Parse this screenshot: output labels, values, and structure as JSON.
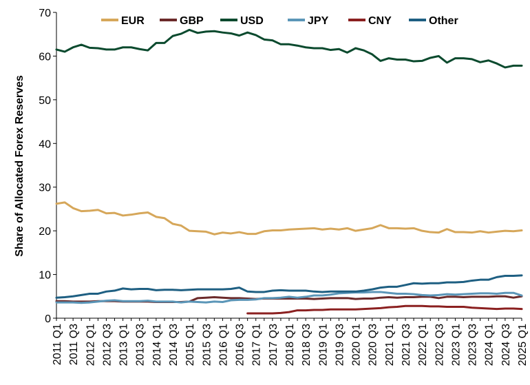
{
  "chart_data": {
    "type": "line",
    "ylabel": "Share of Allocated Forex Reserves",
    "ylim": [
      0,
      70
    ],
    "yticks": [
      0,
      10,
      20,
      30,
      40,
      50,
      60,
      70
    ],
    "x": [
      "2011 Q1",
      "2011 Q2",
      "2011 Q3",
      "2011 Q4",
      "2012 Q1",
      "2012 Q2",
      "2012 Q3",
      "2012 Q4",
      "2013 Q1",
      "2013 Q2",
      "2013 Q3",
      "2013 Q4",
      "2014 Q1",
      "2014 Q2",
      "2014 Q3",
      "2014 Q4",
      "2015 Q1",
      "2015 Q2",
      "2015 Q3",
      "2015 Q4",
      "2016 Q1",
      "2016 Q2",
      "2016 Q3",
      "2016 Q4",
      "2017 Q1",
      "2017 Q2",
      "2017 Q3",
      "2017 Q4",
      "2018 Q1",
      "2018 Q2",
      "2018 Q3",
      "2018 Q4",
      "2019 Q1",
      "2019 Q2",
      "2019 Q3",
      "2019 Q4",
      "2020 Q1",
      "2020 Q2",
      "2020 Q3",
      "2020 Q4",
      "2021 Q1",
      "2021 Q2",
      "2021 Q3",
      "2021 Q4",
      "2022 Q1",
      "2022 Q2",
      "2022 Q3",
      "2022 Q4",
      "2023 Q1",
      "2023 Q2",
      "2023 Q3",
      "2023 Q4",
      "2024 Q1",
      "2024 Q2",
      "2024 Q3",
      "2024 Q4",
      "2025 Q1"
    ],
    "xtick_labels": [
      "2011 Q1",
      "2011 Q3",
      "2012 Q1",
      "2012 Q3",
      "2013 Q1",
      "2013 Q3",
      "2014 Q1",
      "2014 Q3",
      "2015 Q1",
      "2015 Q3",
      "2016 Q1",
      "2016 Q3",
      "2017 Q1",
      "2017 Q3",
      "2018 Q1",
      "2018 Q3",
      "2019 Q1",
      "2019 Q3",
      "2020 Q1",
      "2020 Q3",
      "2021 Q1",
      "2021 Q3",
      "2022 Q1",
      "2022 Q3",
      "2023 Q1",
      "2023 Q3",
      "2024 Q1",
      "2024 Q3",
      "2025 Q1"
    ],
    "legend_position": "top",
    "grid": false,
    "series": [
      {
        "name": "EUR",
        "color": "#d6a75a",
        "values": [
          26.2,
          26.5,
          25.2,
          24.5,
          24.6,
          24.8,
          24.0,
          24.1,
          23.5,
          23.7,
          24.0,
          24.2,
          23.2,
          22.9,
          21.6,
          21.2,
          20.0,
          19.9,
          19.8,
          19.2,
          19.6,
          19.4,
          19.7,
          19.3,
          19.3,
          19.9,
          20.1,
          20.1,
          20.3,
          20.4,
          20.5,
          20.6,
          20.3,
          20.5,
          20.3,
          20.6,
          20.0,
          20.3,
          20.6,
          21.3,
          20.6,
          20.6,
          20.5,
          20.6,
          20.0,
          19.7,
          19.6,
          20.4,
          19.7,
          19.7,
          19.6,
          19.9,
          19.6,
          19.8,
          20.0,
          19.9,
          20.1
        ]
      },
      {
        "name": "GBP",
        "color": "#6b2a2a",
        "values": [
          3.9,
          3.9,
          3.8,
          3.8,
          3.8,
          3.9,
          3.9,
          3.9,
          3.8,
          3.8,
          3.8,
          3.8,
          3.7,
          3.7,
          3.7,
          3.7,
          3.8,
          4.6,
          4.7,
          4.8,
          4.7,
          4.6,
          4.6,
          4.5,
          4.4,
          4.5,
          4.5,
          4.5,
          4.5,
          4.5,
          4.5,
          4.4,
          4.5,
          4.6,
          4.6,
          4.6,
          4.4,
          4.5,
          4.5,
          4.7,
          4.8,
          4.7,
          4.8,
          4.8,
          4.9,
          4.9,
          4.6,
          4.9,
          4.9,
          4.8,
          4.9,
          4.9,
          4.9,
          5.0,
          5.0,
          4.7,
          5.0
        ]
      },
      {
        "name": "USD",
        "color": "#0b4a2e",
        "values": [
          61.5,
          61.0,
          62.0,
          62.6,
          61.9,
          61.8,
          61.5,
          61.5,
          62.0,
          62.0,
          61.6,
          61.3,
          63.0,
          63.0,
          64.6,
          65.1,
          66.0,
          65.3,
          65.6,
          65.7,
          65.4,
          65.2,
          64.7,
          65.4,
          64.8,
          63.8,
          63.6,
          62.7,
          62.7,
          62.4,
          62.0,
          61.8,
          61.8,
          61.4,
          61.6,
          60.8,
          61.8,
          61.3,
          60.4,
          58.9,
          59.5,
          59.2,
          59.2,
          58.8,
          58.9,
          59.6,
          60.0,
          58.5,
          59.5,
          59.5,
          59.3,
          58.6,
          59.0,
          58.3,
          57.4,
          57.8,
          57.8
        ]
      },
      {
        "name": "JPY",
        "color": "#5b96b8",
        "values": [
          3.6,
          3.6,
          3.6,
          3.5,
          3.6,
          3.8,
          4.0,
          4.1,
          3.9,
          3.9,
          3.9,
          4.0,
          3.8,
          3.8,
          3.8,
          3.6,
          3.8,
          3.7,
          3.6,
          3.8,
          3.7,
          4.1,
          4.2,
          4.2,
          4.3,
          4.6,
          4.6,
          4.7,
          4.9,
          4.7,
          4.9,
          5.2,
          5.2,
          5.4,
          5.7,
          5.8,
          5.9,
          5.9,
          6.0,
          6.0,
          5.8,
          5.6,
          5.6,
          5.5,
          5.3,
          5.2,
          5.3,
          5.5,
          5.4,
          5.5,
          5.6,
          5.7,
          5.7,
          5.6,
          5.8,
          5.8,
          5.2
        ]
      },
      {
        "name": "CNY",
        "color": "#8b2020",
        "values": [
          null,
          null,
          null,
          null,
          null,
          null,
          null,
          null,
          null,
          null,
          null,
          null,
          null,
          null,
          null,
          null,
          null,
          null,
          null,
          null,
          null,
          null,
          null,
          1.1,
          1.1,
          1.1,
          1.1,
          1.2,
          1.4,
          1.8,
          1.8,
          1.9,
          1.9,
          2.0,
          2.0,
          2.0,
          2.0,
          2.1,
          2.2,
          2.3,
          2.5,
          2.6,
          2.8,
          2.8,
          2.8,
          2.7,
          2.7,
          2.6,
          2.6,
          2.6,
          2.4,
          2.3,
          2.2,
          2.1,
          2.2,
          2.2,
          2.1
        ]
      },
      {
        "name": "Other",
        "color": "#1e5f82",
        "values": [
          4.7,
          4.8,
          5.0,
          5.3,
          5.6,
          5.6,
          6.1,
          6.3,
          6.8,
          6.6,
          6.7,
          6.7,
          6.4,
          6.5,
          6.5,
          6.4,
          6.5,
          6.6,
          6.6,
          6.6,
          6.6,
          6.7,
          7.0,
          6.1,
          6.0,
          6.0,
          6.3,
          6.4,
          6.3,
          6.3,
          6.3,
          6.1,
          6.0,
          6.1,
          6.1,
          6.1,
          6.1,
          6.3,
          6.6,
          7.0,
          7.2,
          7.2,
          7.6,
          8.0,
          7.9,
          8.0,
          8.0,
          8.2,
          8.2,
          8.3,
          8.6,
          8.8,
          8.8,
          9.4,
          9.7,
          9.7,
          9.8
        ]
      }
    ]
  }
}
